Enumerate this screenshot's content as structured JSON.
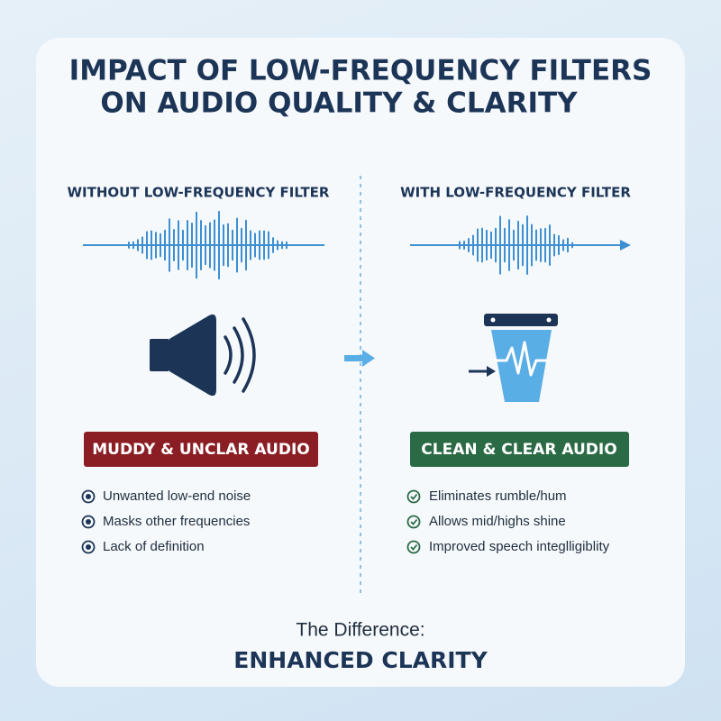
{
  "header": {
    "title_lines": [
      "IMPACT OF LOW-FREQUENCY FILTERS",
      "ON AUDIO QUALITY & CLARITY"
    ]
  },
  "left": {
    "heading": "WITHOUT LOW-FREQUENCY FILTER",
    "badge": "MUDDY & UNCLAR AUDIO",
    "points": [
      "Unwanted low-end noise",
      "Masks other frequencies",
      "Lack of definition"
    ]
  },
  "right": {
    "heading": "WITH LOW-FREQUENCY FILTER",
    "badge": "CLEAN & CLEAR AUDIO",
    "points": [
      "Eliminates rumble/hum",
      "Allows mid/highs shine",
      "Improved speech integlligiblity"
    ]
  },
  "footer": {
    "label": "The Difference:",
    "headline": "ENHANCED CLARITY"
  }
}
